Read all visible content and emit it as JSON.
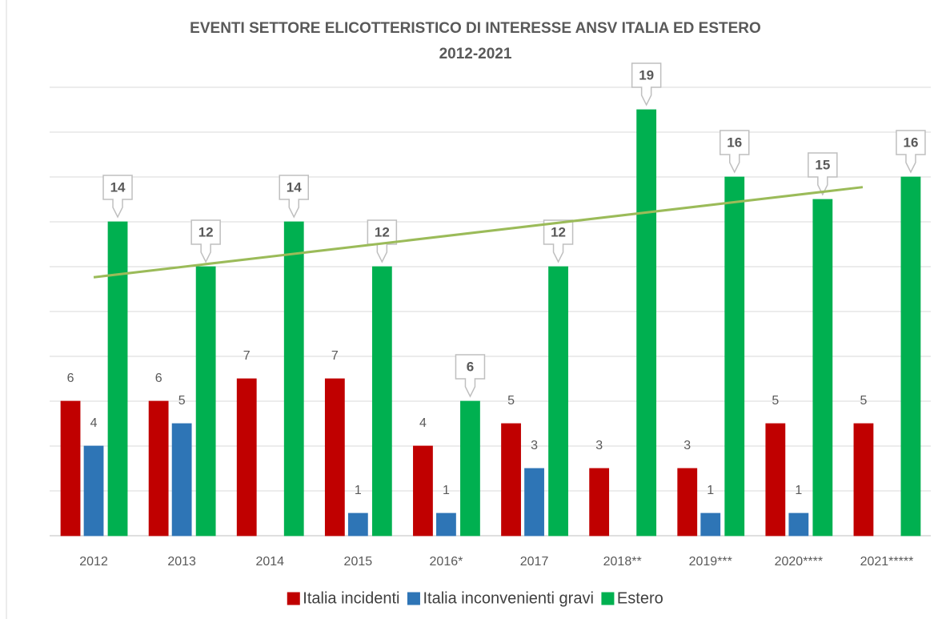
{
  "chart_data": {
    "type": "bar",
    "title": "EVENTI SETTORE ELICOTTERISTICO DI INTERESSE ANSV ITALIA ED ESTERO",
    "subtitle": "2012-2021",
    "categories": [
      "2012",
      "2013",
      "2014",
      "2015",
      "2016*",
      "2017",
      "2018**",
      "2019***",
      "2020****",
      "2021*****"
    ],
    "series": [
      {
        "name": "Italia incidenti",
        "color": "#c00000",
        "values": [
          6,
          6,
          7,
          7,
          4,
          5,
          3,
          3,
          5,
          5
        ]
      },
      {
        "name": "Italia inconvenienti gravi",
        "color": "#2e75b6",
        "values": [
          4,
          5,
          null,
          1,
          1,
          3,
          null,
          1,
          1,
          null
        ]
      },
      {
        "name": "Estero",
        "color": "#00b050",
        "values": [
          14,
          12,
          14,
          12,
          6,
          12,
          19,
          16,
          15,
          16
        ],
        "callout_labels": true,
        "trendline": true
      }
    ],
    "ylim": [
      0,
      20
    ],
    "yticks": [
      0,
      2,
      4,
      6,
      8,
      10,
      12,
      14,
      16,
      18,
      20
    ],
    "grid": true,
    "legend": "bottom"
  }
}
